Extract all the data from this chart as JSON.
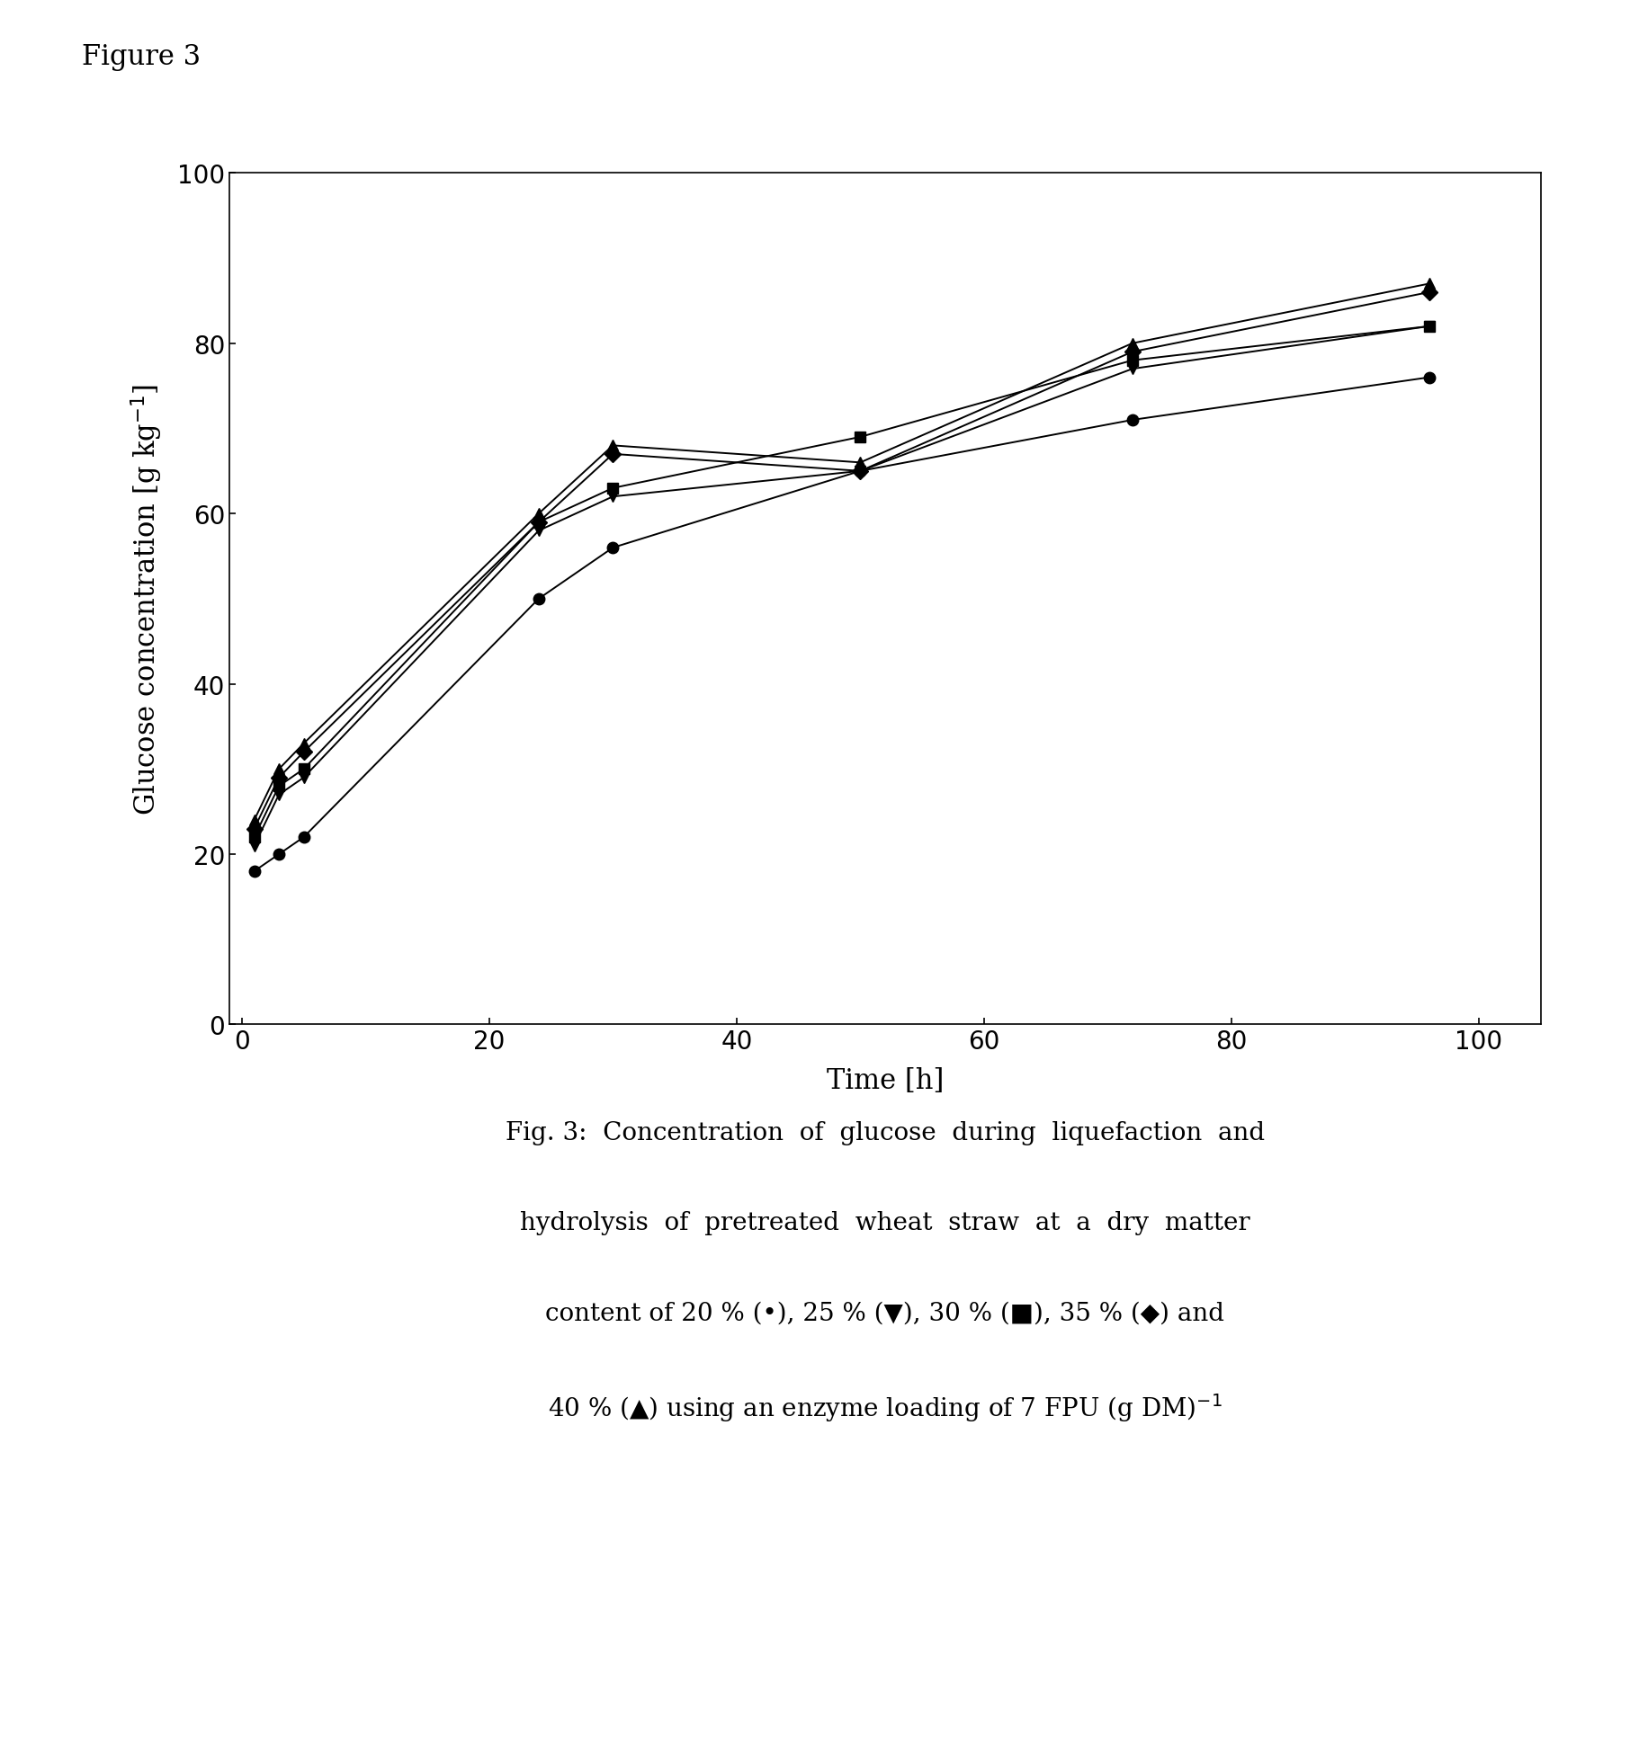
{
  "title_figure": "Figure 3",
  "xlabel": "Time [h]",
  "ylabel": "Glucose concentration [g kg$^{-1}$]",
  "xlim": [
    -1,
    105
  ],
  "ylim": [
    0,
    100
  ],
  "xticks": [
    0,
    20,
    40,
    60,
    80,
    100
  ],
  "yticks": [
    0,
    20,
    40,
    60,
    80,
    100
  ],
  "series": [
    {
      "label": "20%",
      "marker": "o",
      "x": [
        1,
        3,
        5,
        24,
        30,
        50,
        72,
        96
      ],
      "y": [
        18,
        20,
        22,
        50,
        56,
        65,
        71,
        76
      ]
    },
    {
      "label": "25%",
      "marker": "v",
      "x": [
        1,
        3,
        5,
        24,
        30,
        50,
        72,
        96
      ],
      "y": [
        21,
        27,
        29,
        58,
        62,
        65,
        77,
        82
      ]
    },
    {
      "label": "30%",
      "marker": "s",
      "x": [
        1,
        3,
        5,
        24,
        30,
        50,
        72,
        96
      ],
      "y": [
        22,
        28,
        30,
        59,
        63,
        69,
        78,
        82
      ]
    },
    {
      "label": "35%",
      "marker": "D",
      "x": [
        1,
        3,
        5,
        24,
        30,
        50,
        72,
        96
      ],
      "y": [
        23,
        29,
        32,
        59,
        67,
        65,
        79,
        86
      ]
    },
    {
      "label": "40%",
      "marker": "^",
      "x": [
        1,
        3,
        5,
        24,
        30,
        50,
        72,
        96
      ],
      "y": [
        24,
        30,
        33,
        60,
        68,
        66,
        80,
        87
      ]
    }
  ],
  "line_color": "#000000",
  "marker_color": "#000000",
  "marker_size": 9,
  "line_width": 1.4,
  "background_color": "#ffffff",
  "caption_fontsize": 20,
  "title_fontsize": 22,
  "axis_label_fontsize": 22,
  "tick_fontsize": 20
}
